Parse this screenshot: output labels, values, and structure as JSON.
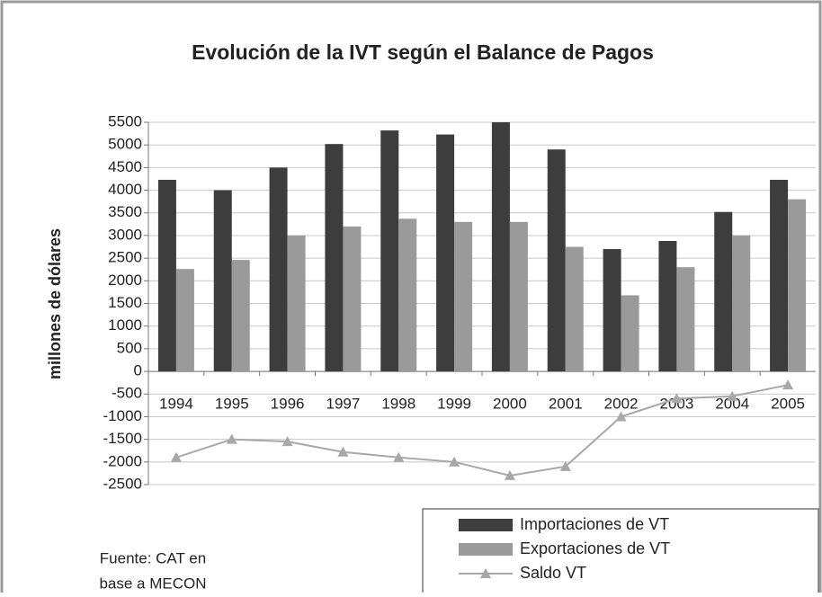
{
  "chart_data": {
    "type": "bar",
    "title": "Evolución de la IVT según el Balance de Pagos",
    "y_label": "millones de dólares",
    "source": [
      "Fuente: CAT en",
      "base a MECON"
    ],
    "categories": [
      "1994",
      "1995",
      "1996",
      "1997",
      "1998",
      "1999",
      "2000",
      "2001",
      "2002",
      "2003",
      "2004",
      "2005"
    ],
    "series": [
      {
        "name": "Importaciones de VT",
        "type": "bar",
        "color": "#3d3d3d",
        "values": [
          4230,
          4000,
          4500,
          5020,
          5320,
          5230,
          5500,
          4900,
          2700,
          2880,
          3520,
          4230
        ]
      },
      {
        "name": "Exportaciones de VT",
        "type": "bar",
        "color": "#9a9a9a",
        "values": [
          2260,
          2460,
          3000,
          3200,
          3370,
          3300,
          3300,
          2750,
          1680,
          2300,
          3000,
          3800
        ]
      },
      {
        "name": "Saldo VT",
        "type": "line",
        "color": "#a8a8a8",
        "values": [
          -1900,
          -1500,
          -1550,
          -1780,
          -1900,
          -2000,
          -2300,
          -2100,
          -1000,
          -600,
          -550,
          -300
        ]
      }
    ],
    "ylim": [
      -2500,
      5500
    ],
    "yticks": [
      -2500,
      -2000,
      -1500,
      -1000,
      -500,
      0,
      500,
      1000,
      1500,
      2000,
      2500,
      3000,
      3500,
      4000,
      4500,
      5000,
      5500
    ],
    "grid": true
  }
}
